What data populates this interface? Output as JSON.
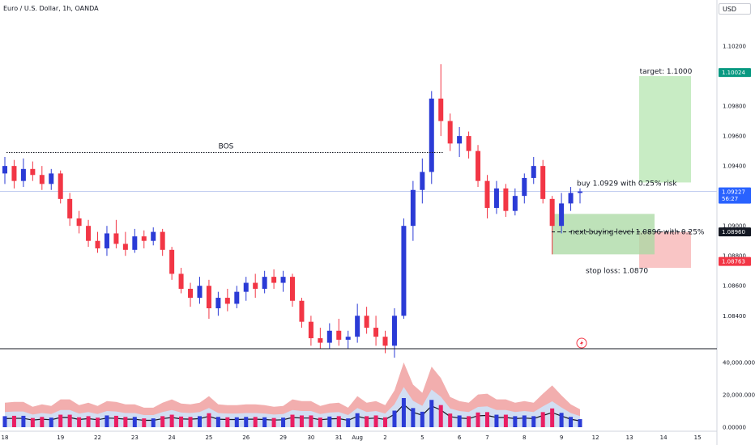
{
  "header": {
    "symbol_title": "Euro / U.S. Dollar, 1h, OANDA",
    "currency": "USD"
  },
  "colors": {
    "up": "#2b3bd6",
    "down": "#f23645",
    "target_zone": "#c8ecc4",
    "stop_zone": "#f9c5c5",
    "entry_zone": "#a8d8a2",
    "volume_band_outer": "#f0a0a0",
    "volume_band_inner": "#cfe0f5"
  },
  "chart_data": {
    "type": "candlestick",
    "price_axis": {
      "ticks": [
        "1.10200",
        "1.09800",
        "1.09600",
        "1.09400",
        "1.09000",
        "1.08800",
        "1.08600",
        "1.08400"
      ],
      "ylim": [
        1.0818,
        1.104
      ]
    },
    "price_tags": [
      {
        "value": "1.10024",
        "color": "#089981"
      },
      {
        "value": "1.09227",
        "sub": "56:27",
        "color": "#2962ff"
      },
      {
        "value": "1.08960",
        "color": "#131722"
      },
      {
        "value": "1.08763",
        "color": "#f23645"
      }
    ],
    "time_axis": {
      "ticks": [
        "18",
        "19",
        "22",
        "23",
        "24",
        "25",
        "26",
        "29",
        "30",
        "31",
        "Aug",
        "2",
        "5",
        "6",
        "7",
        "8",
        "9",
        "12",
        "13",
        "14",
        "15"
      ]
    },
    "candles": [
      {
        "x": "18",
        "o": 1.0935,
        "h": 1.0946,
        "l": 1.0928,
        "c": 1.094
      },
      {
        "x": "18",
        "o": 1.094,
        "h": 1.0944,
        "l": 1.0925,
        "c": 1.093
      },
      {
        "x": "18",
        "o": 1.093,
        "h": 1.0945,
        "l": 1.0926,
        "c": 1.0938
      },
      {
        "x": "18",
        "o": 1.0938,
        "h": 1.0943,
        "l": 1.093,
        "c": 1.0934
      },
      {
        "x": "18",
        "o": 1.0934,
        "h": 1.094,
        "l": 1.0924,
        "c": 1.0928
      },
      {
        "x": "18",
        "o": 1.0928,
        "h": 1.0938,
        "l": 1.0924,
        "c": 1.0935
      },
      {
        "x": "19",
        "o": 1.0935,
        "h": 1.0937,
        "l": 1.0915,
        "c": 1.0918
      },
      {
        "x": "19",
        "o": 1.0918,
        "h": 1.0922,
        "l": 1.09,
        "c": 1.0905
      },
      {
        "x": "19",
        "o": 1.0905,
        "h": 1.091,
        "l": 1.0895,
        "c": 1.09
      },
      {
        "x": "19",
        "o": 1.09,
        "h": 1.0904,
        "l": 1.0886,
        "c": 1.089
      },
      {
        "x": "22",
        "o": 1.089,
        "h": 1.0896,
        "l": 1.0882,
        "c": 1.0885
      },
      {
        "x": "22",
        "o": 1.0885,
        "h": 1.09,
        "l": 1.088,
        "c": 1.0895
      },
      {
        "x": "22",
        "o": 1.0895,
        "h": 1.0904,
        "l": 1.0885,
        "c": 1.0888
      },
      {
        "x": "22",
        "o": 1.0888,
        "h": 1.0896,
        "l": 1.088,
        "c": 1.0884
      },
      {
        "x": "23",
        "o": 1.0884,
        "h": 1.0898,
        "l": 1.0882,
        "c": 1.0893
      },
      {
        "x": "23",
        "o": 1.0893,
        "h": 1.0897,
        "l": 1.0885,
        "c": 1.089
      },
      {
        "x": "23",
        "o": 1.089,
        "h": 1.0899,
        "l": 1.0887,
        "c": 1.0896
      },
      {
        "x": "23",
        "o": 1.0896,
        "h": 1.0898,
        "l": 1.088,
        "c": 1.0884
      },
      {
        "x": "24",
        "o": 1.0884,
        "h": 1.0886,
        "l": 1.0864,
        "c": 1.0868
      },
      {
        "x": "24",
        "o": 1.0868,
        "h": 1.0872,
        "l": 1.0855,
        "c": 1.0858
      },
      {
        "x": "24",
        "o": 1.0858,
        "h": 1.0862,
        "l": 1.0846,
        "c": 1.0852
      },
      {
        "x": "24",
        "o": 1.0852,
        "h": 1.0866,
        "l": 1.0848,
        "c": 1.086
      },
      {
        "x": "25",
        "o": 1.086,
        "h": 1.0864,
        "l": 1.0838,
        "c": 1.0845
      },
      {
        "x": "25",
        "o": 1.0845,
        "h": 1.0856,
        "l": 1.084,
        "c": 1.0852
      },
      {
        "x": "25",
        "o": 1.0852,
        "h": 1.0858,
        "l": 1.0843,
        "c": 1.0848
      },
      {
        "x": "25",
        "o": 1.0848,
        "h": 1.086,
        "l": 1.0845,
        "c": 1.0856
      },
      {
        "x": "26",
        "o": 1.0856,
        "h": 1.0866,
        "l": 1.085,
        "c": 1.0862
      },
      {
        "x": "26",
        "o": 1.0862,
        "h": 1.0868,
        "l": 1.0852,
        "c": 1.0858
      },
      {
        "x": "26",
        "o": 1.0858,
        "h": 1.087,
        "l": 1.0855,
        "c": 1.0866
      },
      {
        "x": "26",
        "o": 1.0866,
        "h": 1.0871,
        "l": 1.0858,
        "c": 1.0862
      },
      {
        "x": "29",
        "o": 1.0862,
        "h": 1.087,
        "l": 1.0856,
        "c": 1.0866
      },
      {
        "x": "29",
        "o": 1.0866,
        "h": 1.0868,
        "l": 1.0846,
        "c": 1.085
      },
      {
        "x": "29",
        "o": 1.085,
        "h": 1.0852,
        "l": 1.0832,
        "c": 1.0836
      },
      {
        "x": "30",
        "o": 1.0836,
        "h": 1.084,
        "l": 1.082,
        "c": 1.0825
      },
      {
        "x": "30",
        "o": 1.0825,
        "h": 1.0832,
        "l": 1.0818,
        "c": 1.0822
      },
      {
        "x": "30",
        "o": 1.0822,
        "h": 1.0835,
        "l": 1.0818,
        "c": 1.083
      },
      {
        "x": "31",
        "o": 1.083,
        "h": 1.0838,
        "l": 1.082,
        "c": 1.0824
      },
      {
        "x": "31",
        "o": 1.0824,
        "h": 1.083,
        "l": 1.0818,
        "c": 1.0826
      },
      {
        "x": "Aug",
        "o": 1.0826,
        "h": 1.0848,
        "l": 1.0822,
        "c": 1.084
      },
      {
        "x": "Aug",
        "o": 1.084,
        "h": 1.0846,
        "l": 1.0828,
        "c": 1.0832
      },
      {
        "x": "Aug",
        "o": 1.0832,
        "h": 1.084,
        "l": 1.082,
        "c": 1.0826
      },
      {
        "x": "2",
        "o": 1.0826,
        "h": 1.083,
        "l": 1.0815,
        "c": 1.082
      },
      {
        "x": "2",
        "o": 1.082,
        "h": 1.0845,
        "l": 1.0812,
        "c": 1.084
      },
      {
        "x": "2",
        "o": 1.084,
        "h": 1.0905,
        "l": 1.0838,
        "c": 1.09
      },
      {
        "x": "2",
        "o": 1.09,
        "h": 1.093,
        "l": 1.089,
        "c": 1.0924
      },
      {
        "x": "5",
        "o": 1.0924,
        "h": 1.0945,
        "l": 1.0915,
        "c": 1.0936
      },
      {
        "x": "5",
        "o": 1.0936,
        "h": 1.099,
        "l": 1.0928,
        "c": 1.0985
      },
      {
        "x": "5",
        "o": 1.0985,
        "h": 1.1008,
        "l": 1.096,
        "c": 1.097
      },
      {
        "x": "5",
        "o": 1.097,
        "h": 1.0975,
        "l": 1.095,
        "c": 1.0955
      },
      {
        "x": "6",
        "o": 1.0955,
        "h": 1.0966,
        "l": 1.0946,
        "c": 1.096
      },
      {
        "x": "6",
        "o": 1.096,
        "h": 1.0963,
        "l": 1.0945,
        "c": 1.095
      },
      {
        "x": "6",
        "o": 1.095,
        "h": 1.0954,
        "l": 1.0926,
        "c": 1.093
      },
      {
        "x": "7",
        "o": 1.093,
        "h": 1.0934,
        "l": 1.0905,
        "c": 1.0912
      },
      {
        "x": "7",
        "o": 1.0912,
        "h": 1.093,
        "l": 1.0908,
        "c": 1.0925
      },
      {
        "x": "7",
        "o": 1.0925,
        "h": 1.0928,
        "l": 1.0906,
        "c": 1.091
      },
      {
        "x": "7",
        "o": 1.091,
        "h": 1.0925,
        "l": 1.0907,
        "c": 1.092
      },
      {
        "x": "8",
        "o": 1.092,
        "h": 1.0935,
        "l": 1.0915,
        "c": 1.0932
      },
      {
        "x": "8",
        "o": 1.0932,
        "h": 1.0946,
        "l": 1.0928,
        "c": 1.094
      },
      {
        "x": "8",
        "o": 1.094,
        "h": 1.0944,
        "l": 1.0915,
        "c": 1.0918
      },
      {
        "x": "8",
        "o": 1.0918,
        "h": 1.092,
        "l": 1.0881,
        "c": 1.09
      },
      {
        "x": "9",
        "o": 1.09,
        "h": 1.0922,
        "l": 1.0895,
        "c": 1.0915
      },
      {
        "x": "9",
        "o": 1.0915,
        "h": 1.0926,
        "l": 1.091,
        "c": 1.0922
      },
      {
        "x": "9",
        "o": 1.0922,
        "h": 1.0925,
        "l": 1.0915,
        "c": 1.0923
      }
    ],
    "annotations": {
      "bos": {
        "label": "BOS",
        "price": 1.0949
      },
      "target": {
        "label": "target: 1.1000",
        "price": 1.1
      },
      "buy": {
        "label": "buy 1.0929 with 0.25% risk",
        "price": 1.0929
      },
      "next_level": {
        "label": "next buying level 1.0896 with 0.25%",
        "price": 1.0896
      },
      "stop": {
        "label": "stop loss: 1.0870",
        "price": 1.087
      }
    },
    "volume_axis": {
      "ticks": [
        "40,000.00000",
        "20,000.00000",
        "0.00000"
      ],
      "ylim": [
        0,
        46000
      ]
    }
  }
}
